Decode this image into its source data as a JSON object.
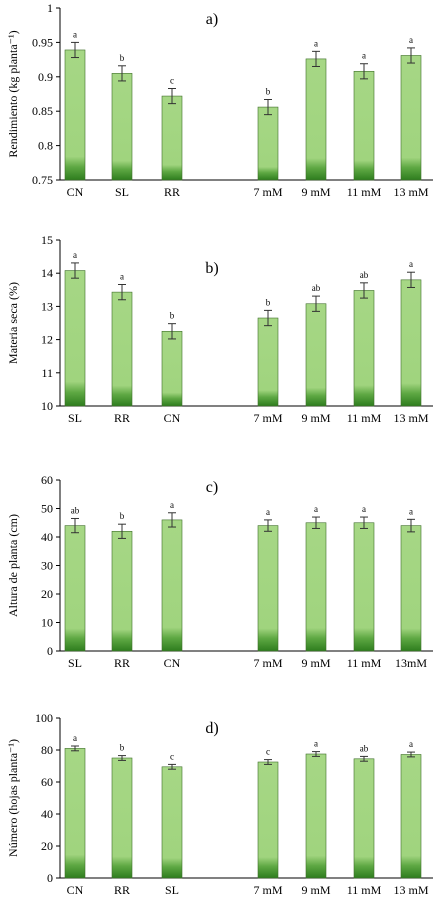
{
  "colors": {
    "bar_light": "#a6d785",
    "bar_dark": "#2e7d1e",
    "bar_edge": "#3f6e2a",
    "axis": "#000000"
  },
  "chart_data": [
    {
      "type": "bar",
      "panel_label": "a)",
      "ylabel": "Rendimiento (kg planta⁻¹)",
      "ylim": [
        0.75,
        1
      ],
      "yticks": [
        0.75,
        0.8,
        0.85,
        0.9,
        0.95,
        1
      ],
      "ytick_labels": [
        "0.75",
        "0.8",
        "0.85",
        "0.9",
        "0.95",
        "1"
      ],
      "categories": [
        "CN",
        "SL",
        "RR",
        "",
        "7 mM",
        "9 mM",
        "11 mM",
        "13 mM"
      ],
      "values": [
        0.939,
        0.905,
        0.872,
        null,
        0.856,
        0.926,
        0.908,
        0.931
      ],
      "errors": [
        0.011,
        0.011,
        0.011,
        null,
        0.011,
        0.011,
        0.011,
        0.011
      ],
      "labels": [
        "a",
        "b",
        "c",
        "",
        "b",
        "a",
        "a",
        "a"
      ],
      "grid": false
    },
    {
      "type": "bar",
      "panel_label": "b)",
      "ylabel": "Materia seca (%)",
      "ylim": [
        10,
        15
      ],
      "yticks": [
        10,
        11,
        12,
        13,
        14,
        15
      ],
      "ytick_labels": [
        "10",
        "11",
        "12",
        "13",
        "14",
        "15"
      ],
      "categories": [
        "SL",
        "RR",
        "CN",
        "",
        "7 mM",
        "9 mM",
        "11 mM",
        "13 mM"
      ],
      "values": [
        14.08,
        13.43,
        12.25,
        null,
        12.65,
        13.08,
        13.48,
        13.8
      ],
      "errors": [
        0.23,
        0.23,
        0.23,
        null,
        0.23,
        0.23,
        0.23,
        0.23
      ],
      "labels": [
        "a",
        "a",
        "b",
        "",
        "b",
        "ab",
        "ab",
        "a"
      ],
      "grid": false
    },
    {
      "type": "bar",
      "panel_label": "c)",
      "ylabel": "Altura de planta (cm)",
      "ylim": [
        0,
        60
      ],
      "yticks": [
        0,
        10,
        20,
        30,
        40,
        50,
        60
      ],
      "ytick_labels": [
        "0",
        "10",
        "20",
        "30",
        "40",
        "50",
        "60"
      ],
      "categories": [
        "SL",
        "RR",
        "CN",
        "",
        "7 mM",
        "9 mM",
        "11 mM",
        "13mM"
      ],
      "values": [
        44,
        42,
        46,
        null,
        44,
        45,
        45,
        44
      ],
      "errors": [
        2.5,
        2.5,
        2.5,
        null,
        2.0,
        2.0,
        2.0,
        2.2
      ],
      "labels": [
        "ab",
        "b",
        "a",
        "",
        "a",
        "a",
        "a",
        "a"
      ],
      "grid": false
    },
    {
      "type": "bar",
      "panel_label": "d)",
      "ylabel": "Número (hojas planta⁻¹)",
      "ylim": [
        0,
        100
      ],
      "yticks": [
        0,
        20,
        40,
        60,
        80,
        100
      ],
      "ytick_labels": [
        "0",
        "20",
        "40",
        "60",
        "80",
        "100"
      ],
      "categories": [
        "CN",
        "RR",
        "SL",
        "",
        "7 mM",
        "9 mM",
        "11 mM",
        "13 mM"
      ],
      "values": [
        81,
        75,
        69.5,
        null,
        72.5,
        77.5,
        74.5,
        77.2
      ],
      "errors": [
        1.5,
        1.5,
        1.5,
        null,
        1.5,
        1.5,
        1.5,
        1.5
      ],
      "labels": [
        "a",
        "b",
        "c",
        "",
        "c",
        "a",
        "ab",
        "a"
      ],
      "grid": false
    }
  ]
}
